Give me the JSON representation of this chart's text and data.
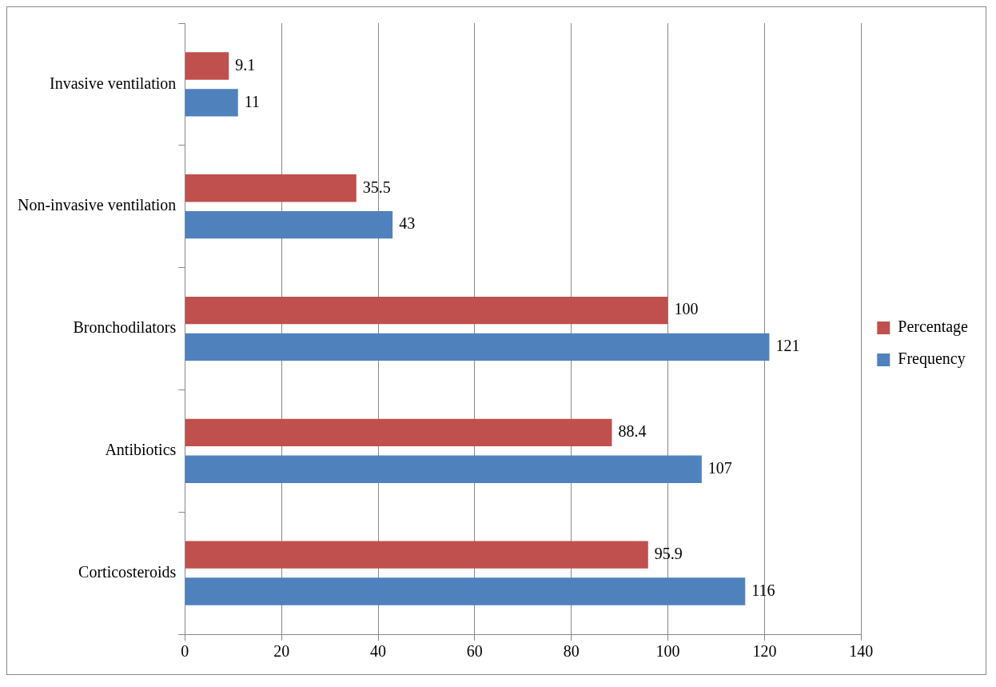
{
  "chart_data": {
    "type": "bar",
    "orientation": "horizontal",
    "categories": [
      "Invasive ventilation",
      "Non-invasive ventilation",
      "Bronchodilators",
      "Antibiotics",
      "Corticosteroids"
    ],
    "series": [
      {
        "name": "Percentage",
        "color": "#c0504d",
        "values": [
          9.1,
          35.5,
          100,
          88.4,
          95.9
        ]
      },
      {
        "name": "Frequency",
        "color": "#4f81bd",
        "values": [
          11,
          43,
          121,
          107,
          116
        ]
      }
    ],
    "xlim": [
      0,
      140
    ],
    "xticks": [
      0,
      20,
      40,
      60,
      80,
      100,
      120,
      140
    ],
    "grid": "x",
    "legend": "right",
    "data_labels": true
  }
}
